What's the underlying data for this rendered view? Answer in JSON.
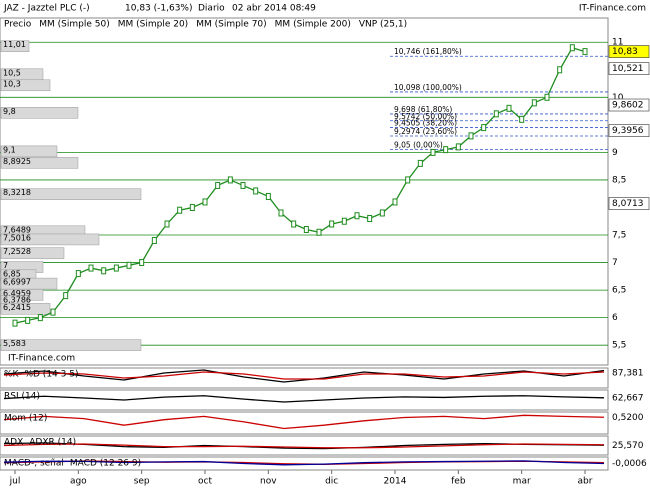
{
  "header": {
    "title": "JAZ - Jazztel PLC (-)",
    "quote": "10,83 (-1,63%)",
    "period": "Diario",
    "datetime": "02 abr 2014 08:49",
    "brand": "IT-Finance.com"
  },
  "chart_data": [
    {
      "type": "line",
      "legend_items": [
        {
          "name": "Precio",
          "color": "#555555"
        },
        {
          "name": "MM (Simple 50)",
          "color": "#555555"
        },
        {
          "name": "MM (Simple 20)",
          "color": "#cc0000"
        },
        {
          "name": "MM (Simple 70)",
          "color": "#000099"
        },
        {
          "name": "MM (Simple 200)",
          "color": "#006600"
        },
        {
          "name": "VNP (25,1)",
          "color": "#aaaaaa"
        }
      ],
      "categories": [
        "jul",
        null,
        null,
        null,
        null,
        "ago",
        null,
        null,
        null,
        null,
        "sep",
        null,
        null,
        null,
        null,
        "oct",
        null,
        null,
        null,
        null,
        "nov",
        null,
        null,
        null,
        null,
        "dic",
        null,
        null,
        null,
        null,
        "2014",
        null,
        null,
        null,
        null,
        "feb",
        null,
        null,
        null,
        null,
        "mar",
        null,
        null,
        null,
        null,
        "abr"
      ],
      "series": [
        {
          "name": "Precio",
          "color": "#1e8c1e",
          "values": [
            5.9,
            5.95,
            6.0,
            6.1,
            6.4,
            6.8,
            6.9,
            6.85,
            6.9,
            6.95,
            7.0,
            7.4,
            7.7,
            7.95,
            8.0,
            8.1,
            8.4,
            8.5,
            8.4,
            8.3,
            8.2,
            7.9,
            7.7,
            7.6,
            7.55,
            7.7,
            7.75,
            7.85,
            7.8,
            7.9,
            8.1,
            8.5,
            8.8,
            9.0,
            9.05,
            9.1,
            9.3,
            9.45,
            9.7,
            9.8,
            9.6,
            9.9,
            10.0,
            10.5,
            10.9,
            10.83
          ]
        }
      ],
      "ylim": [
        5.14,
        11.44
      ],
      "yticks": [
        {
          "value": 5.5,
          "label": "5,5"
        },
        6,
        {
          "value": 6.5,
          "label": "6,5"
        },
        7,
        {
          "value": 7.5,
          "label": "7,5"
        },
        {
          "value": 8.5,
          "label": "8,5"
        },
        9,
        10,
        11
      ],
      "price_markers": [
        {
          "value": 10.83,
          "label": "10,83",
          "color": "#ffff00"
        },
        {
          "value": 10.521,
          "label": "10,521",
          "color": "#ffffff"
        },
        {
          "value": 9.8602,
          "label": "9,8602",
          "color": "#ffffff"
        },
        {
          "value": 9.3956,
          "label": "9,3956",
          "color": "#ffffff"
        },
        {
          "value": 8.0713,
          "label": "8,0713",
          "color": "#ffffff"
        }
      ],
      "fibonacci": [
        {
          "value": 10.746,
          "label": "10,746 (161,80%)"
        },
        {
          "value": 10.098,
          "label": "10,098 (100,00%)"
        },
        {
          "value": 9.698,
          "label": "9,698 (61,80%)"
        },
        {
          "value": 9.5742,
          "label": "9,5742 (50,00%)"
        },
        {
          "value": 9.4505,
          "label": "9,4505 (38,20%)"
        },
        {
          "value": 9.2974,
          "label": "9,2974 (23,60%)"
        },
        {
          "value": 9.05,
          "label": "9,05 (0,00%)"
        }
      ],
      "volume_profile": {
        "levels": [
          {
            "value": 11.01,
            "label": "11,01"
          },
          {
            "value": 10.5,
            "label": "10,5"
          },
          {
            "value": 10.3,
            "label": "10,3"
          },
          {
            "value": 9.8,
            "label": "9,8"
          },
          {
            "value": 9.1,
            "label": "9,1"
          },
          {
            "value": 8.8925,
            "label": "8,8925"
          },
          {
            "value": 8.3218,
            "label": "8,3218"
          },
          {
            "value": 7.6489,
            "label": "7,6489"
          },
          {
            "value": 7.5016,
            "label": "7,5016"
          },
          {
            "value": 7.2528,
            "label": "7,2528"
          },
          7,
          {
            "value": 6.85,
            "label": "6,85"
          },
          {
            "value": 6.6997,
            "label": "6,6997"
          },
          {
            "value": 6.4959,
            "label": "6,4959"
          },
          {
            "value": 6.3786,
            "label": "6,3786"
          },
          {
            "value": 6.2415,
            "label": "6,2415"
          },
          {
            "value": 5.583,
            "label": "5,583"
          }
        ],
        "volumes": [
          20,
          30,
          35,
          55,
          40,
          55,
          100,
          60,
          70,
          45,
          30,
          25,
          40,
          30,
          20,
          35,
          100
        ]
      }
    },
    {
      "type": "line",
      "series": [
        {
          "name": "%K",
          "color": "#000000",
          "values": [
            70,
            85,
            60,
            40,
            75,
            90,
            55,
            30,
            50,
            80,
            65,
            45,
            70,
            85,
            60,
            87.381
          ]
        },
        {
          "name": "%D (14 3 5)",
          "color": "#cc0000",
          "values": [
            65,
            75,
            70,
            50,
            60,
            80,
            70,
            45,
            45,
            70,
            70,
            55,
            60,
            80,
            70,
            80
          ]
        }
      ],
      "ylim": [
        0,
        100
      ],
      "last_value": 87.381,
      "value_label": "87,381"
    },
    {
      "type": "line",
      "series": [
        {
          "name": "RSI (14)",
          "color": "#000000",
          "values": [
            60,
            68,
            62,
            55,
            65,
            70,
            58,
            48,
            55,
            62,
            66,
            64,
            68,
            70,
            66,
            62.667
          ]
        }
      ],
      "ylim": [
        20,
        90
      ],
      "last_value": 62.667,
      "value_label": "62,667"
    },
    {
      "type": "line",
      "series": [
        {
          "name": "Mom (12)",
          "color": "#cc0000",
          "values": [
            0.3,
            0.6,
            0.4,
            -0.2,
            0.3,
            0.6,
            0.1,
            -0.5,
            -0.2,
            0.2,
            0.5,
            0.6,
            0.4,
            0.7,
            0.6,
            0.52
          ]
        }
      ],
      "ylim": [
        -1,
        1
      ],
      "last_value": 0.52,
      "value_label": "0,5200"
    },
    {
      "type": "line",
      "series": [
        {
          "name": "ADX",
          "color": "#000000",
          "values": [
            30,
            32,
            28,
            22,
            20,
            25,
            22,
            18,
            17,
            20,
            25,
            28,
            30,
            28,
            27,
            25.57
          ]
        },
        {
          "name": "ADXR (14)",
          "color": "#cc0000",
          "values": [
            25,
            28,
            29,
            26,
            22,
            22,
            23,
            21,
            19,
            19,
            21,
            24,
            27,
            29,
            28,
            27
          ]
        }
      ],
      "ylim": [
        0,
        50
      ],
      "last_value": 25.57,
      "value_label": "25,570"
    },
    {
      "type": "line",
      "series": [
        {
          "name": "MACD-, señal",
          "color": "#cc0000",
          "values": [
            0.05,
            0.1,
            0.15,
            0.12,
            0.08,
            0.1,
            0.06,
            -0.02,
            -0.05,
            0.0,
            0.06,
            0.1,
            0.12,
            0.14,
            0.1,
            0.05
          ]
        },
        {
          "name": "MACD (12 26 9)",
          "color": "#000099",
          "values": [
            0.08,
            0.14,
            0.13,
            0.06,
            0.1,
            0.12,
            0.0,
            -0.08,
            -0.04,
            0.05,
            0.1,
            0.12,
            0.14,
            0.16,
            0.06,
            -0.0006
          ]
        }
      ],
      "ylim": [
        -0.4,
        0.4
      ],
      "last_value": -0.0006,
      "value_label": "-0,0006"
    }
  ]
}
